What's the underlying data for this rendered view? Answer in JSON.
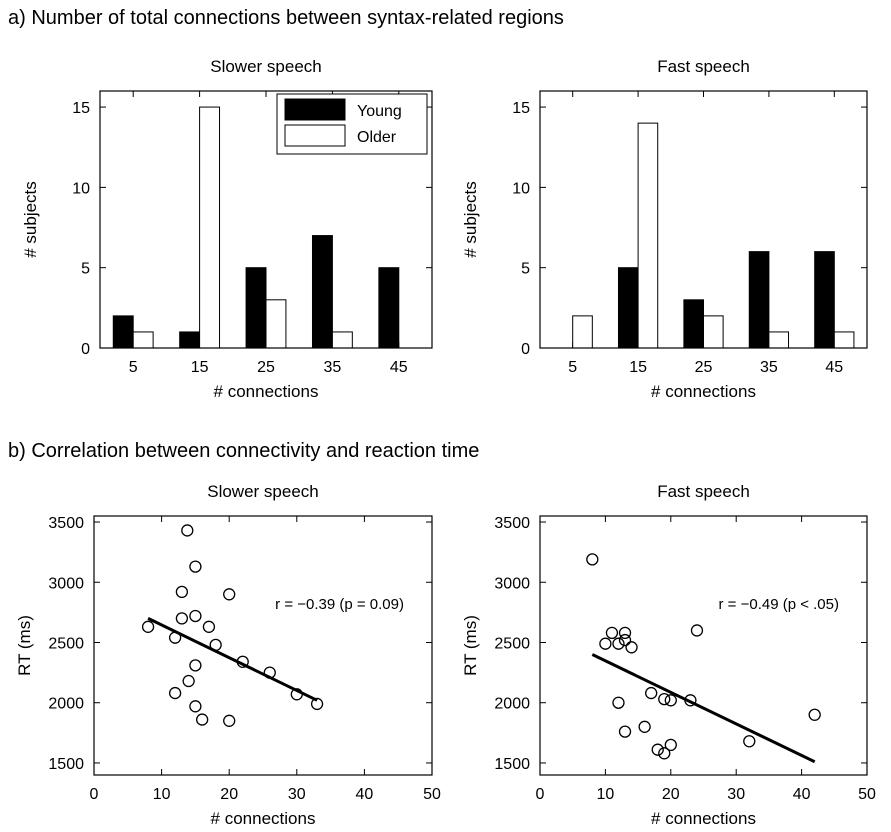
{
  "sections": {
    "a": {
      "letter": "a)",
      "title": "Number of total connections between syntax-related regions"
    },
    "b": {
      "letter": "b)",
      "title": "Correlation between connectivity and reaction time"
    }
  },
  "chart_data": [
    {
      "type": "bar",
      "title": "Slower speech",
      "xlabel": "# connections",
      "ylabel": "# subjects",
      "categories": [
        "5",
        "15",
        "25",
        "35",
        "45"
      ],
      "ylim": [
        0,
        16
      ],
      "yticks": [
        0,
        5,
        10,
        15
      ],
      "legend": "top-right",
      "series": [
        {
          "name": "Young",
          "color": "#000000",
          "values": [
            2,
            1,
            5,
            7,
            5
          ]
        },
        {
          "name": "Older",
          "color": "#ffffff",
          "values": [
            1,
            15,
            3,
            1,
            0
          ]
        }
      ]
    },
    {
      "type": "bar",
      "title": "Fast speech",
      "xlabel": "# connections",
      "ylabel": "# subjects",
      "categories": [
        "5",
        "15",
        "25",
        "35",
        "45"
      ],
      "ylim": [
        0,
        16
      ],
      "yticks": [
        0,
        5,
        10,
        15
      ],
      "series": [
        {
          "name": "Young",
          "color": "#000000",
          "values": [
            0,
            5,
            3,
            6,
            6
          ]
        },
        {
          "name": "Older",
          "color": "#ffffff",
          "values": [
            2,
            14,
            2,
            1,
            1
          ]
        }
      ]
    },
    {
      "type": "scatter",
      "title": "Slower speech",
      "xlabel": "# connections",
      "ylabel": "RT (ms)",
      "xlim": [
        0,
        50
      ],
      "ylim": [
        1400,
        3550
      ],
      "xticks": [
        0,
        10,
        20,
        30,
        40,
        50
      ],
      "yticks": [
        1500,
        2000,
        2500,
        3000,
        3500
      ],
      "annotation": "r = −0.39 (p = 0.09)",
      "points": [
        [
          13.8,
          3430
        ],
        [
          15,
          3130
        ],
        [
          13,
          2920
        ],
        [
          20,
          2900
        ],
        [
          13,
          2700
        ],
        [
          15,
          2720
        ],
        [
          17,
          2630
        ],
        [
          8,
          2630
        ],
        [
          12,
          2540
        ],
        [
          18,
          2480
        ],
        [
          22,
          2340
        ],
        [
          15,
          2310
        ],
        [
          26,
          2250
        ],
        [
          14,
          2180
        ],
        [
          12,
          2080
        ],
        [
          30,
          2070
        ],
        [
          33,
          1990
        ],
        [
          15,
          1970
        ],
        [
          16,
          1860
        ],
        [
          20,
          1850
        ]
      ],
      "fit": [
        [
          8,
          2700
        ],
        [
          33,
          2020
        ]
      ]
    },
    {
      "type": "scatter",
      "title": "Fast speech",
      "xlabel": "# connections",
      "ylabel": "RT (ms)",
      "xlim": [
        0,
        50
      ],
      "ylim": [
        1400,
        3550
      ],
      "xticks": [
        0,
        10,
        20,
        30,
        40,
        50
      ],
      "yticks": [
        1500,
        2000,
        2500,
        3000,
        3500
      ],
      "annotation": "r = −0.49 (p < .05)",
      "points": [
        [
          8,
          3190
        ],
        [
          24,
          2600
        ],
        [
          11,
          2580
        ],
        [
          13,
          2580
        ],
        [
          12,
          2490
        ],
        [
          10,
          2490
        ],
        [
          13,
          2520
        ],
        [
          14,
          2460
        ],
        [
          17,
          2080
        ],
        [
          19,
          2030
        ],
        [
          20,
          2020
        ],
        [
          23,
          2020
        ],
        [
          12,
          2000
        ],
        [
          42,
          1900
        ],
        [
          16,
          1800
        ],
        [
          13,
          1760
        ],
        [
          32,
          1680
        ],
        [
          20,
          1650
        ],
        [
          18,
          1610
        ],
        [
          19,
          1580
        ]
      ],
      "fit": [
        [
          8,
          2400
        ],
        [
          42,
          1510
        ]
      ]
    }
  ]
}
